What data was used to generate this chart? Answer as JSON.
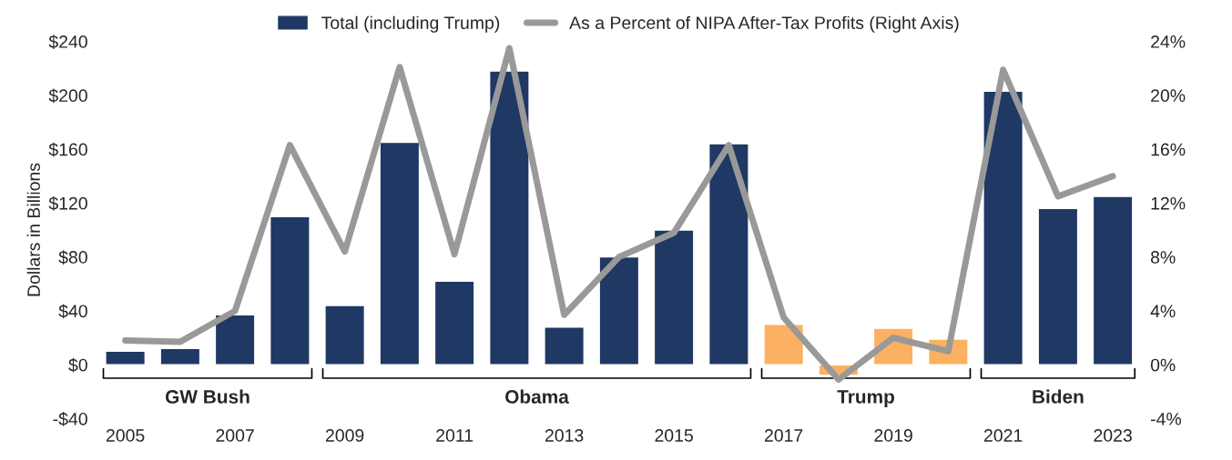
{
  "chart_data": {
    "type": "bar",
    "ylabel": "Dollars in Billions",
    "categories": [
      "2005",
      null,
      "2007",
      null,
      "2009",
      null,
      "2011",
      null,
      "2013",
      null,
      "2015",
      null,
      "2017",
      null,
      "2019",
      null,
      "2021",
      null,
      "2023"
    ],
    "series": [
      {
        "name": "Total (including Trump)",
        "color": "#1f3864",
        "colors": [
          "#1f3864",
          "#1f3864",
          "#1f3864",
          "#1f3864",
          "#1f3864",
          "#1f3864",
          "#1f3864",
          "#1f3864",
          "#1f3864",
          "#1f3864",
          "#1f3864",
          "#1f3864",
          "#fbb161",
          "#fbb161",
          "#fbb161",
          "#fbb161",
          "#1f3864",
          "#1f3864",
          "#1f3864"
        ],
        "values": [
          10,
          12,
          37,
          110,
          44,
          165,
          62,
          218,
          28,
          80,
          100,
          164,
          30,
          -8,
          27,
          19,
          203,
          116,
          125
        ]
      },
      {
        "name": "As a Percent of NIPA After-Tax Profits (Right Axis)",
        "type": "line",
        "axis": "y2",
        "color": "#999999",
        "values": [
          1.8,
          1.7,
          4.0,
          16.3,
          8.4,
          22.1,
          8.2,
          23.5,
          3.7,
          8.0,
          9.8,
          16.3,
          3.5,
          -1.1,
          2.0,
          1.0,
          21.9,
          12.5,
          14.0
        ]
      }
    ],
    "ylim": [
      -40,
      240
    ],
    "yticks": [
      {
        "value": -40,
        "label": "-$40"
      },
      {
        "value": 0,
        "label": "$0"
      },
      {
        "value": 40,
        "label": "$40"
      },
      {
        "value": 80,
        "label": "$80"
      },
      {
        "value": 120,
        "label": "$120"
      },
      {
        "value": 160,
        "label": "$160"
      },
      {
        "value": 200,
        "label": "$200"
      },
      {
        "value": 240,
        "label": "$240"
      }
    ],
    "y2lim": [
      -4,
      24
    ],
    "y2ticks": [
      {
        "value": -4,
        "label": "-4%"
      },
      {
        "value": 0,
        "label": "0%"
      },
      {
        "value": 4,
        "label": "4%"
      },
      {
        "value": 8,
        "label": "8%"
      },
      {
        "value": 12,
        "label": "12%"
      },
      {
        "value": 16,
        "label": "16%"
      },
      {
        "value": 20,
        "label": "20%"
      },
      {
        "value": 24,
        "label": "24%"
      }
    ],
    "annotations": [
      "GW Bush",
      "Obama",
      "Trump",
      "Biden"
    ],
    "legend": "top",
    "grid": false,
    "line_style": "solid",
    "marker": "none"
  }
}
